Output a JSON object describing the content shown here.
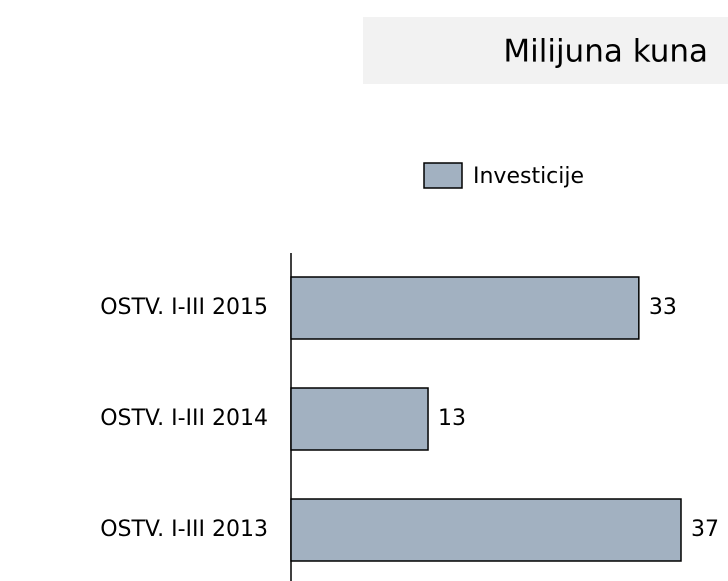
{
  "chart_data": {
    "type": "bar",
    "orientation": "horizontal",
    "title": "Milijuna kuna",
    "categories": [
      "OSTV. I-III 2015",
      "OSTV. I-III 2014",
      "OSTV. I-III 2013"
    ],
    "series": [
      {
        "name": "Investicije",
        "color": "#a2b1c1",
        "values": [
          33,
          13,
          37
        ]
      }
    ]
  }
}
